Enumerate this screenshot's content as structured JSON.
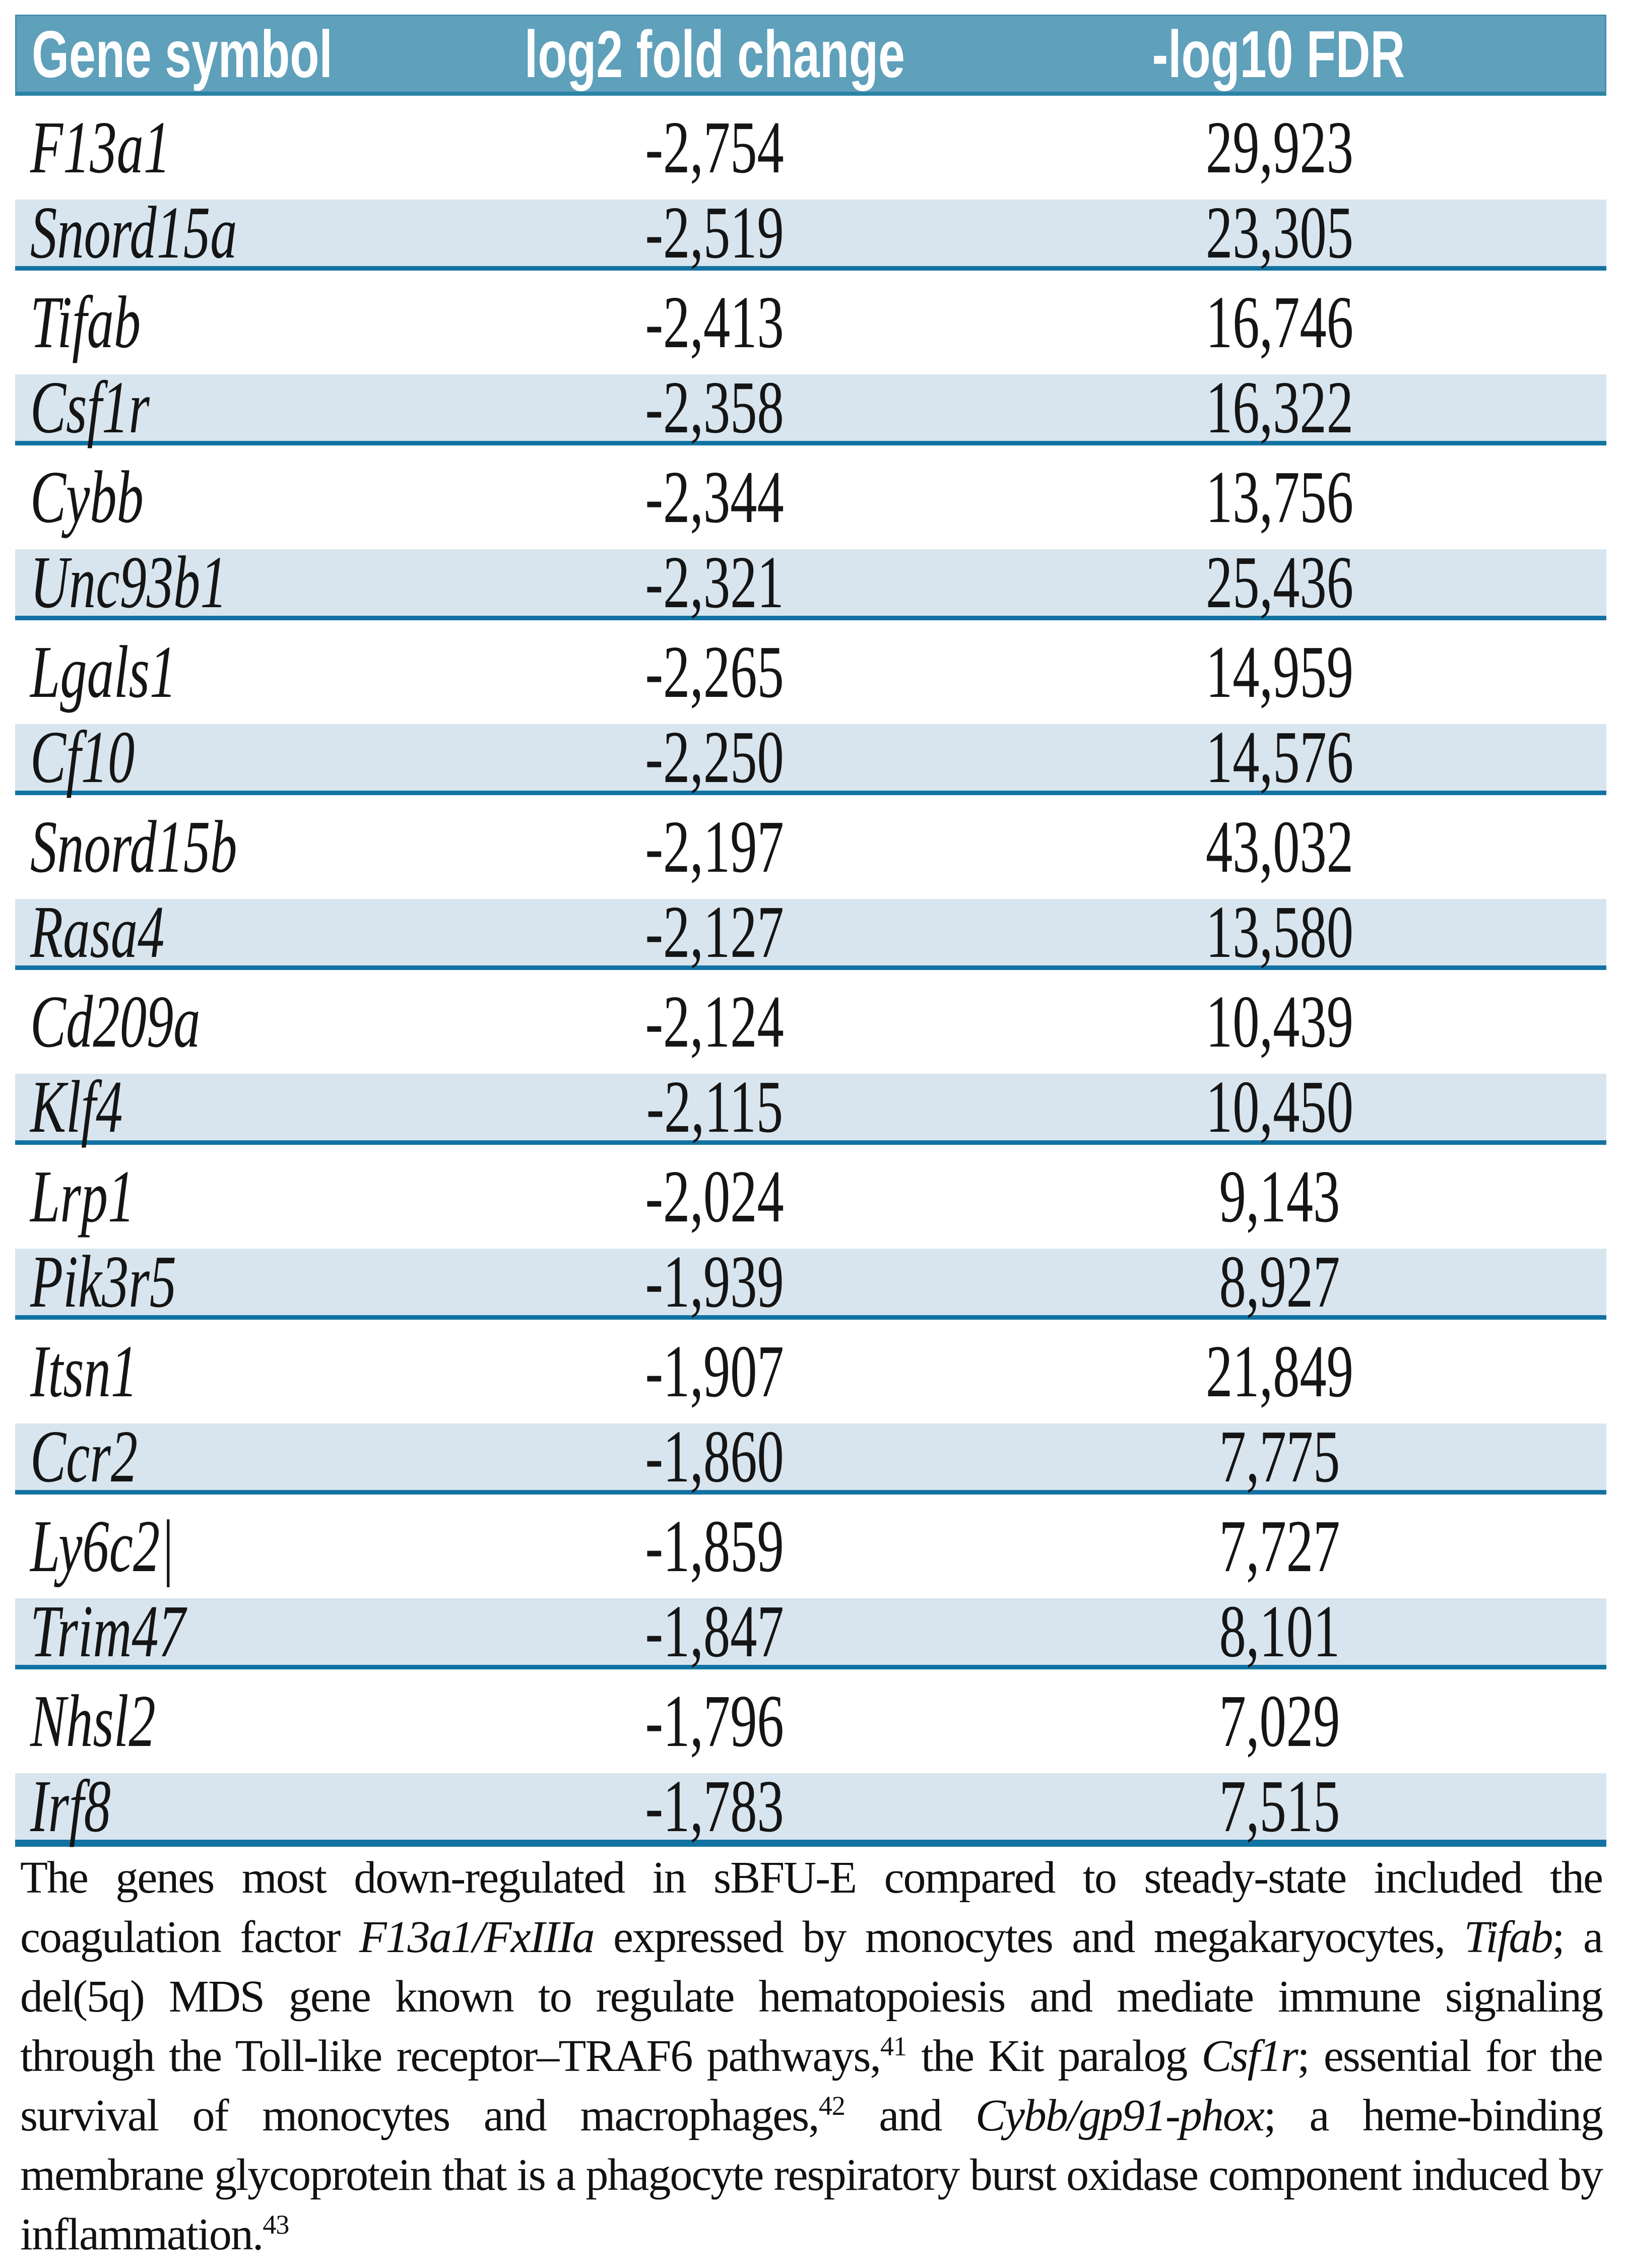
{
  "table": {
    "columns": [
      {
        "key": "gene",
        "label": "Gene symbol"
      },
      {
        "key": "log2fc",
        "label": "log2 fold change"
      },
      {
        "key": "fdr",
        "label": "-log10 FDR"
      }
    ],
    "rows": [
      {
        "gene": "F13a1",
        "log2_fold_change": "-2,754",
        "neg_log10_fdr": "29,923"
      },
      {
        "gene": "Snord15a",
        "log2_fold_change": "-2,519",
        "neg_log10_fdr": "23,305"
      },
      {
        "gene": "Tifab",
        "log2_fold_change": "-2,413",
        "neg_log10_fdr": "16,746"
      },
      {
        "gene": "Csf1r",
        "log2_fold_change": "-2,358",
        "neg_log10_fdr": "16,322"
      },
      {
        "gene": "Cybb",
        "log2_fold_change": "-2,344",
        "neg_log10_fdr": "13,756"
      },
      {
        "gene": "Unc93b1",
        "log2_fold_change": "-2,321",
        "neg_log10_fdr": "25,436"
      },
      {
        "gene": "Lgals1",
        "log2_fold_change": "-2,265",
        "neg_log10_fdr": "14,959"
      },
      {
        "gene": "Cf10",
        "log2_fold_change": "-2,250",
        "neg_log10_fdr": "14,576"
      },
      {
        "gene": "Snord15b",
        "log2_fold_change": "-2,197",
        "neg_log10_fdr": "43,032"
      },
      {
        "gene": "Rasa4",
        "log2_fold_change": "-2,127",
        "neg_log10_fdr": "13,580"
      },
      {
        "gene": "Cd209a",
        "log2_fold_change": "-2,124",
        "neg_log10_fdr": "10,439"
      },
      {
        "gene": "Klf4",
        "log2_fold_change": "-2,115",
        "neg_log10_fdr": "10,450"
      },
      {
        "gene": "Lrp1",
        "log2_fold_change": "-2,024",
        "neg_log10_fdr": "9,143"
      },
      {
        "gene": "Pik3r5",
        "log2_fold_change": "-1,939",
        "neg_log10_fdr": "8,927"
      },
      {
        "gene": "Itsn1",
        "log2_fold_change": "-1,907",
        "neg_log10_fdr": "21,849"
      },
      {
        "gene": "Ccr2",
        "log2_fold_change": "-1,860",
        "neg_log10_fdr": "7,775"
      },
      {
        "gene": "Ly6c2|",
        "log2_fold_change": "-1,859",
        "neg_log10_fdr": "7,727"
      },
      {
        "gene": "Trim47",
        "log2_fold_change": "-1,847",
        "neg_log10_fdr": "8,101"
      },
      {
        "gene": "Nhsl2",
        "log2_fold_change": "-1,796",
        "neg_log10_fdr": "7,029"
      },
      {
        "gene": "Irf8",
        "log2_fold_change": "-1,783",
        "neg_log10_fdr": "7,515"
      }
    ]
  },
  "footnote": {
    "segments": [
      {
        "text": "The genes most down-regulated in sBFU-E compared to steady-state included the coagulation factor "
      },
      {
        "text": "F13a1/FxIIIa",
        "italic": true
      },
      {
        "text": " expressed by monocytes and megakaryocytes, "
      },
      {
        "text": "Tifab",
        "italic": true
      },
      {
        "text": "; a del(5q) MDS gene known to regulate hematopoiesis and mediate immune signaling through the Toll-like receptor–TRAF6 pathways,"
      },
      {
        "text": "41",
        "sup": true
      },
      {
        "text": " the Kit paralog "
      },
      {
        "text": "Csf1r",
        "italic": true
      },
      {
        "text": "; essential for the survival of monocytes and macrophages,"
      },
      {
        "text": "42",
        "sup": true
      },
      {
        "text": " and "
      },
      {
        "text": "Cybb/gp91-phox",
        "italic": true
      },
      {
        "text": "; a heme-binding membrane glycoprotein that is a phagocyte respiratory burst oxidase component induced by inflammation."
      },
      {
        "text": "43",
        "sup": true
      }
    ]
  },
  "colors": {
    "header_bg": "#5fa0bb",
    "header_border": "#2b83a6",
    "header_text": "#ffffff",
    "row_shaded_bg": "#d8e5ee",
    "rule": "#1273a2",
    "body_text": "#151515"
  }
}
